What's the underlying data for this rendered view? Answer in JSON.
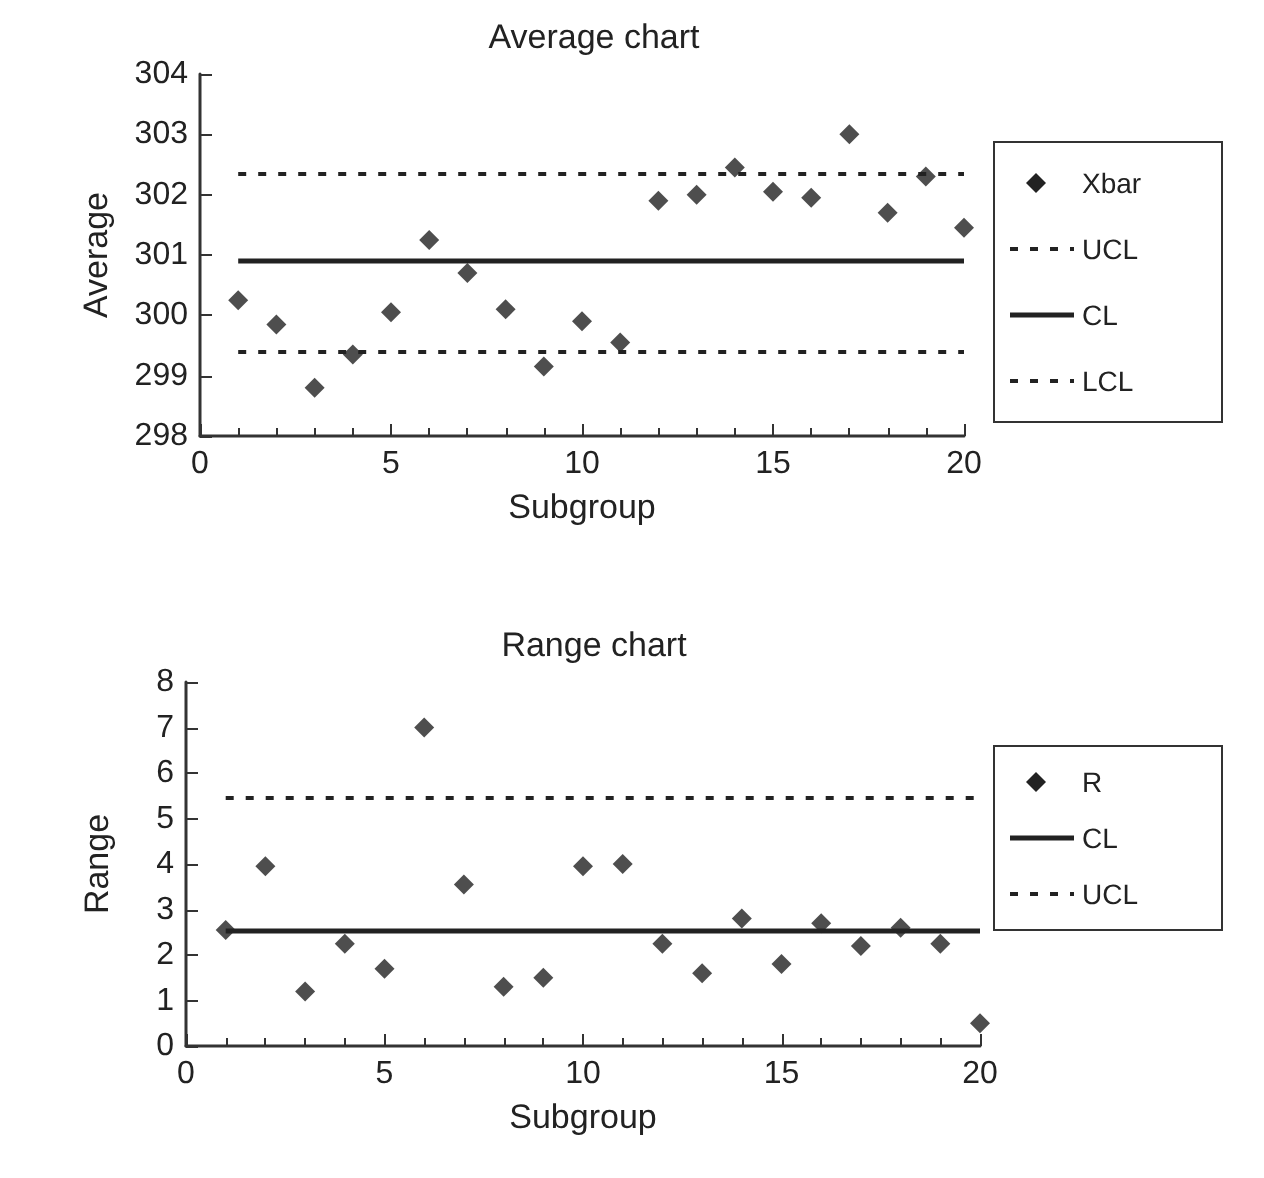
{
  "chart_data": [
    {
      "type": "scatter",
      "title": "Average chart",
      "xlabel": "Subgroup",
      "ylabel": "Average",
      "xlim": [
        0,
        20
      ],
      "xticks": [
        0,
        5,
        10,
        15,
        20
      ],
      "ylim": [
        298,
        304
      ],
      "yticks": [
        298,
        299,
        300,
        301,
        302,
        303,
        304
      ],
      "legend": "right",
      "marker": "diamond",
      "x": [
        1,
        2,
        3,
        4,
        5,
        6,
        7,
        8,
        9,
        10,
        11,
        12,
        13,
        14,
        15,
        16,
        17,
        18,
        19,
        20
      ],
      "series": [
        {
          "name": "Xbar",
          "color": "#222222",
          "values": [
            300.25,
            299.85,
            298.8,
            299.35,
            300.05,
            301.25,
            300.7,
            300.1,
            299.15,
            299.9,
            299.55,
            301.9,
            302.0,
            302.45,
            302.05,
            301.95,
            303.0,
            301.7,
            302.3,
            301.45
          ]
        }
      ],
      "ref_lines": [
        {
          "axis": "y",
          "value": 302.35,
          "label": "UCL",
          "line_style": "dashed",
          "color": "#222222"
        },
        {
          "axis": "y",
          "value": 300.9,
          "label": "CL",
          "line_style": "solid",
          "color": "#222222"
        },
        {
          "axis": "y",
          "value": 299.4,
          "label": "LCL",
          "line_style": "dashed",
          "color": "#222222"
        }
      ]
    },
    {
      "type": "scatter",
      "title": "Range chart",
      "xlabel": "Subgroup",
      "ylabel": "Range",
      "xlim": [
        0,
        20
      ],
      "xticks": [
        0,
        5,
        10,
        15,
        20
      ],
      "ylim": [
        0,
        8
      ],
      "yticks": [
        0,
        1,
        2,
        3,
        4,
        5,
        6,
        7,
        8
      ],
      "legend": "right",
      "marker": "diamond",
      "x": [
        1,
        2,
        3,
        4,
        5,
        6,
        7,
        8,
        9,
        10,
        11,
        12,
        13,
        14,
        15,
        16,
        17,
        18,
        19,
        20
      ],
      "series": [
        {
          "name": "R",
          "color": "#222222",
          "values": [
            2.55,
            3.95,
            1.2,
            2.25,
            1.7,
            7.0,
            3.55,
            1.3,
            1.5,
            3.95,
            4.0,
            2.25,
            1.6,
            2.8,
            1.8,
            2.7,
            2.2,
            2.6,
            2.25,
            0.5
          ]
        }
      ],
      "ref_lines": [
        {
          "axis": "y",
          "value": 2.55,
          "label": "CL",
          "line_style": "solid",
          "color": "#222222"
        },
        {
          "axis": "y",
          "value": 5.45,
          "label": "UCL",
          "line_style": "dashed",
          "color": "#222222"
        }
      ]
    }
  ]
}
